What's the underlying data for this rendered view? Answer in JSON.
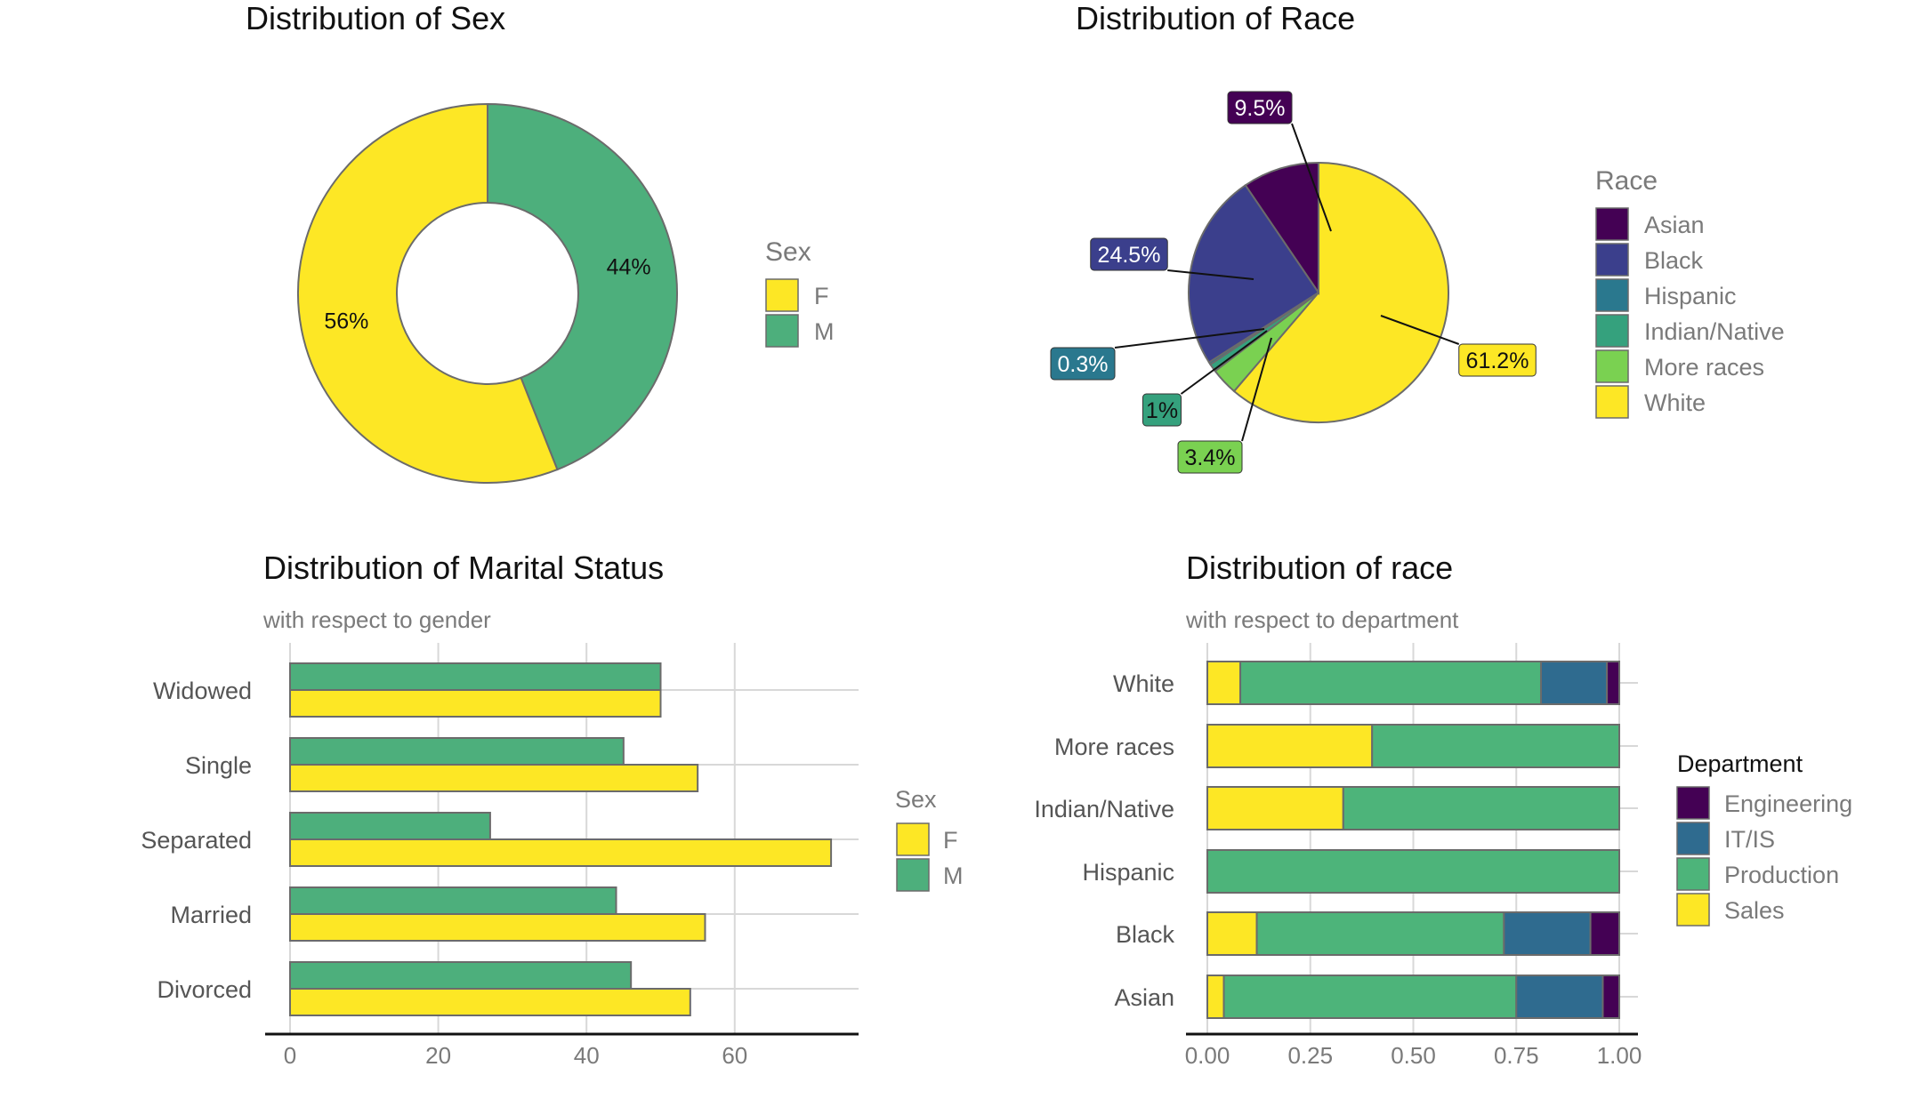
{
  "chart_data": [
    {
      "type": "pie",
      "variant": "donut",
      "title": "Distribution of Sex",
      "legend": {
        "title": "Sex",
        "placement": "right"
      },
      "slices": [
        {
          "label": "F",
          "value": 56,
          "text": "56%",
          "color": "#FDE725"
        },
        {
          "label": "M",
          "value": 44,
          "text": "44%",
          "color": "#4DAF7C"
        }
      ]
    },
    {
      "type": "pie",
      "title": "Distribution of Race",
      "legend": {
        "title": "Race",
        "placement": "right"
      },
      "slices": [
        {
          "label": "Asian",
          "value": 9.5,
          "text": "9.5%",
          "color": "#440154"
        },
        {
          "label": "Black",
          "value": 24.5,
          "text": "24.5%",
          "color": "#3B3F8C"
        },
        {
          "label": "Hispanic",
          "value": 0.3,
          "text": "0.3%",
          "color": "#2A788E"
        },
        {
          "label": "Indian/Native",
          "value": 1,
          "text": "1%",
          "color": "#35A17D"
        },
        {
          "label": "More races",
          "value": 3.4,
          "text": "3.4%",
          "color": "#7AD151"
        },
        {
          "label": "White",
          "value": 61.2,
          "text": "61.2%",
          "color": "#FDE725"
        }
      ]
    },
    {
      "type": "bar",
      "orientation": "horizontal",
      "title": "Distribution of Marital Status",
      "subtitle": "with respect to gender",
      "categories": [
        "Widowed",
        "Single",
        "Separated",
        "Married",
        "Divorced"
      ],
      "series": [
        {
          "name": "M",
          "color": "#4DAF7C",
          "values": [
            50,
            45,
            27,
            44,
            46
          ]
        },
        {
          "name": "F",
          "color": "#FDE725",
          "values": [
            50,
            55,
            73,
            56,
            54
          ]
        }
      ],
      "xlim": [
        0,
        76
      ],
      "xticks": [
        0,
        20,
        40,
        60
      ],
      "grid": true,
      "legend": {
        "title": "Sex",
        "placement": "right",
        "items": [
          {
            "label": "F",
            "color": "#FDE725"
          },
          {
            "label": "M",
            "color": "#4DAF7C"
          }
        ]
      }
    },
    {
      "type": "bar",
      "orientation": "horizontal",
      "stacked": "fill",
      "title": "Distribution of race",
      "subtitle": "with respect to department",
      "categories": [
        "White",
        "More races",
        "Indian/Native",
        "Hispanic",
        "Black",
        "Asian"
      ],
      "series": [
        {
          "name": "Sales",
          "color": "#FDE725",
          "values": [
            0.08,
            0.4,
            0.33,
            0.0,
            0.12,
            0.04
          ]
        },
        {
          "name": "Production",
          "color": "#4DB47A",
          "values": [
            0.73,
            0.6,
            0.67,
            1.0,
            0.6,
            0.71
          ]
        },
        {
          "name": "IT/IS",
          "color": "#2F6B8F",
          "values": [
            0.16,
            0.0,
            0.0,
            0.0,
            0.21,
            0.21
          ]
        },
        {
          "name": "Engineering",
          "color": "#440154",
          "values": [
            0.03,
            0.0,
            0.0,
            0.0,
            0.07,
            0.04
          ]
        }
      ],
      "xlim": [
        0,
        1
      ],
      "xticks": [
        "0.00",
        "0.25",
        "0.50",
        "0.75",
        "1.00"
      ],
      "grid": true,
      "legend": {
        "title": "Department",
        "placement": "right",
        "items": [
          {
            "label": "Engineering",
            "color": "#440154"
          },
          {
            "label": "IT/IS",
            "color": "#2F6B8F"
          },
          {
            "label": "Production",
            "color": "#4DB47A"
          },
          {
            "label": "Sales",
            "color": "#FDE725"
          }
        ]
      }
    }
  ]
}
